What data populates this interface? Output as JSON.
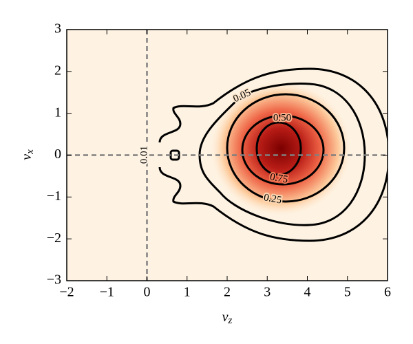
{
  "chart_data": {
    "type": "contour",
    "x_label": {
      "symbol": "v",
      "subscript": "z"
    },
    "y_label": {
      "symbol": "v",
      "subscript": "x"
    },
    "xlim": [
      -2,
      6
    ],
    "ylim": [
      -3,
      3
    ],
    "xticks": [
      {
        "value": -2,
        "label": "−2"
      },
      {
        "value": -1,
        "label": "−1"
      },
      0,
      1,
      2,
      3,
      4,
      5,
      6
    ],
    "yticks": [
      {
        "value": -3,
        "label": "−3"
      },
      {
        "value": -2,
        "label": "−2"
      },
      {
        "value": -1,
        "label": "−1"
      },
      0,
      1,
      2,
      3
    ],
    "levels": [
      0.01,
      0.05,
      0.25,
      {
        "value": 0.5,
        "label": "0.50"
      },
      0.75
    ],
    "vline": 0,
    "hline": 0
  }
}
